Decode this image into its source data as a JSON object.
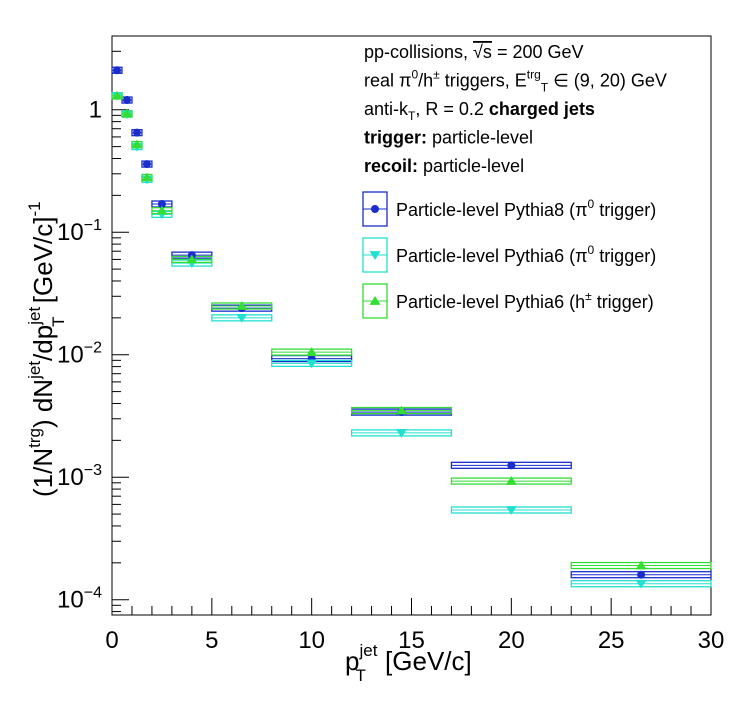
{
  "chart_data": {
    "type": "scatter",
    "title": "",
    "xlabel": {
      "base": "p",
      "sup": "jet",
      "sub": "T",
      "unit": "[GeV/c]"
    },
    "ylabel": {
      "p1": "(1/N",
      "p1sup": "trg",
      "p2": ") dN",
      "p2sup": "jet",
      "p3": "/dp",
      "p3sup": "jet",
      "p3sub": "T",
      "p4": " [GeV/c]",
      "p4sup": "-1"
    },
    "xlim": [
      0,
      30
    ],
    "ylim": [
      7.5e-05,
      4.0
    ],
    "yscale": "log",
    "x_ticks": [
      "0",
      "5",
      "10",
      "15",
      "20",
      "25",
      "30"
    ],
    "y_ticks": [
      {
        "label": "1",
        "value": 1,
        "base": "",
        "exp": ""
      },
      {
        "label": "10^-1",
        "value": 0.1,
        "base": "10",
        "exp": "−1"
      },
      {
        "label": "10^-2",
        "value": 0.01,
        "base": "10",
        "exp": "−2"
      },
      {
        "label": "10^-3",
        "value": 0.001,
        "base": "10",
        "exp": "−3"
      },
      {
        "label": "10^-4",
        "value": 0.0001,
        "base": "10",
        "exp": "−4"
      }
    ],
    "grid": false,
    "legend_position": "top-right",
    "annotations": [
      [
        {
          "t": "pp-collisions, "
        },
        {
          "t": "√s",
          "overline": true
        },
        {
          "t": " = 200 GeV"
        }
      ],
      [
        {
          "t": "real π"
        },
        {
          "t": "0",
          "sup": true
        },
        {
          "t": "/h"
        },
        {
          "t": "±",
          "sup": true
        },
        {
          "t": " triggers, E"
        },
        {
          "t": "trg",
          "sup": true
        },
        {
          "t": "T",
          "sub": true
        },
        {
          "t": " ∈ (9, 20) GeV"
        }
      ],
      [
        {
          "t": "anti-k"
        },
        {
          "t": "T",
          "sub": true
        },
        {
          "t": ", R = 0.2 "
        },
        {
          "t": "charged jets",
          "bold": true
        }
      ],
      [
        {
          "t": "trigger:",
          "bold": true
        },
        {
          "t": " particle-level"
        }
      ],
      [
        {
          "t": "recoil:",
          "bold": true
        },
        {
          "t": " particle-level"
        }
      ]
    ],
    "series": [
      {
        "name": "Particle-level Pythia8 (π⁰ trigger)",
        "legend": [
          {
            "t": "Particle-level Pythia8 (π"
          },
          {
            "t": "0",
            "sup": true
          },
          {
            "t": " trigger)"
          }
        ],
        "color": "#1a2ecc",
        "marker": "circle",
        "points": [
          {
            "x": 0.25,
            "y": 2.1,
            "xlo": 0.0,
            "xhi": 0.5
          },
          {
            "x": 0.75,
            "y": 1.2,
            "xlo": 0.5,
            "xhi": 1.0
          },
          {
            "x": 1.25,
            "y": 0.65,
            "xlo": 1.0,
            "xhi": 1.5
          },
          {
            "x": 1.75,
            "y": 0.36,
            "xlo": 1.5,
            "xhi": 2.0
          },
          {
            "x": 2.5,
            "y": 0.17,
            "xlo": 2.0,
            "xhi": 3.0
          },
          {
            "x": 4.0,
            "y": 0.065,
            "xlo": 3.0,
            "xhi": 5.0
          },
          {
            "x": 6.5,
            "y": 0.024,
            "xlo": 5.0,
            "xhi": 8.0
          },
          {
            "x": 10.0,
            "y": 0.0093,
            "xlo": 8.0,
            "xhi": 12.0
          },
          {
            "x": 14.5,
            "y": 0.0034,
            "xlo": 12.0,
            "xhi": 17.0
          },
          {
            "x": 20.0,
            "y": 0.00125,
            "xlo": 17.0,
            "xhi": 23.0
          },
          {
            "x": 26.5,
            "y": 0.00016,
            "xlo": 23.0,
            "xhi": 30.0
          }
        ]
      },
      {
        "name": "Particle-level Pythia6 (π⁰ trigger)",
        "legend": [
          {
            "t": "Particle-level Pythia6 (π"
          },
          {
            "t": "0",
            "sup": true
          },
          {
            "t": " trigger)"
          }
        ],
        "color": "#22e0d0",
        "marker": "triangle-down",
        "points": [
          {
            "x": 0.25,
            "y": 1.3,
            "xlo": 0.0,
            "xhi": 0.5
          },
          {
            "x": 0.75,
            "y": 0.92,
            "xlo": 0.5,
            "xhi": 1.0
          },
          {
            "x": 1.25,
            "y": 0.5,
            "xlo": 1.0,
            "xhi": 1.5
          },
          {
            "x": 1.75,
            "y": 0.27,
            "xlo": 1.5,
            "xhi": 2.0
          },
          {
            "x": 2.5,
            "y": 0.14,
            "xlo": 2.0,
            "xhi": 3.0
          },
          {
            "x": 4.0,
            "y": 0.056,
            "xlo": 3.0,
            "xhi": 5.0
          },
          {
            "x": 6.5,
            "y": 0.02,
            "xlo": 5.0,
            "xhi": 8.0
          },
          {
            "x": 10.0,
            "y": 0.0085,
            "xlo": 8.0,
            "xhi": 12.0
          },
          {
            "x": 14.5,
            "y": 0.0023,
            "xlo": 12.0,
            "xhi": 17.0
          },
          {
            "x": 20.0,
            "y": 0.00054,
            "xlo": 17.0,
            "xhi": 23.0
          },
          {
            "x": 26.5,
            "y": 0.000135,
            "xlo": 23.0,
            "xhi": 30.0
          }
        ]
      },
      {
        "name": "Particle-level Pythia6 (h± trigger)",
        "legend": [
          {
            "t": "Particle-level Pythia6 (h"
          },
          {
            "t": "±",
            "sup": true
          },
          {
            "t": " trigger)"
          }
        ],
        "color": "#33dd33",
        "marker": "triangle-up",
        "points": [
          {
            "x": 0.25,
            "y": 1.3,
            "xlo": 0.0,
            "xhi": 0.5
          },
          {
            "x": 0.75,
            "y": 0.93,
            "xlo": 0.5,
            "xhi": 1.0
          },
          {
            "x": 1.25,
            "y": 0.52,
            "xlo": 1.0,
            "xhi": 1.5
          },
          {
            "x": 1.75,
            "y": 0.28,
            "xlo": 1.5,
            "xhi": 2.0
          },
          {
            "x": 2.5,
            "y": 0.15,
            "xlo": 2.0,
            "xhi": 3.0
          },
          {
            "x": 4.0,
            "y": 0.06,
            "xlo": 3.0,
            "xhi": 5.0
          },
          {
            "x": 6.5,
            "y": 0.025,
            "xlo": 5.0,
            "xhi": 8.0
          },
          {
            "x": 10.0,
            "y": 0.0105,
            "xlo": 8.0,
            "xhi": 12.0
          },
          {
            "x": 14.5,
            "y": 0.0035,
            "xlo": 12.0,
            "xhi": 17.0
          },
          {
            "x": 20.0,
            "y": 0.00093,
            "xlo": 17.0,
            "xhi": 23.0
          },
          {
            "x": 26.5,
            "y": 0.00019,
            "xlo": 23.0,
            "xhi": 30.0
          }
        ]
      }
    ]
  }
}
